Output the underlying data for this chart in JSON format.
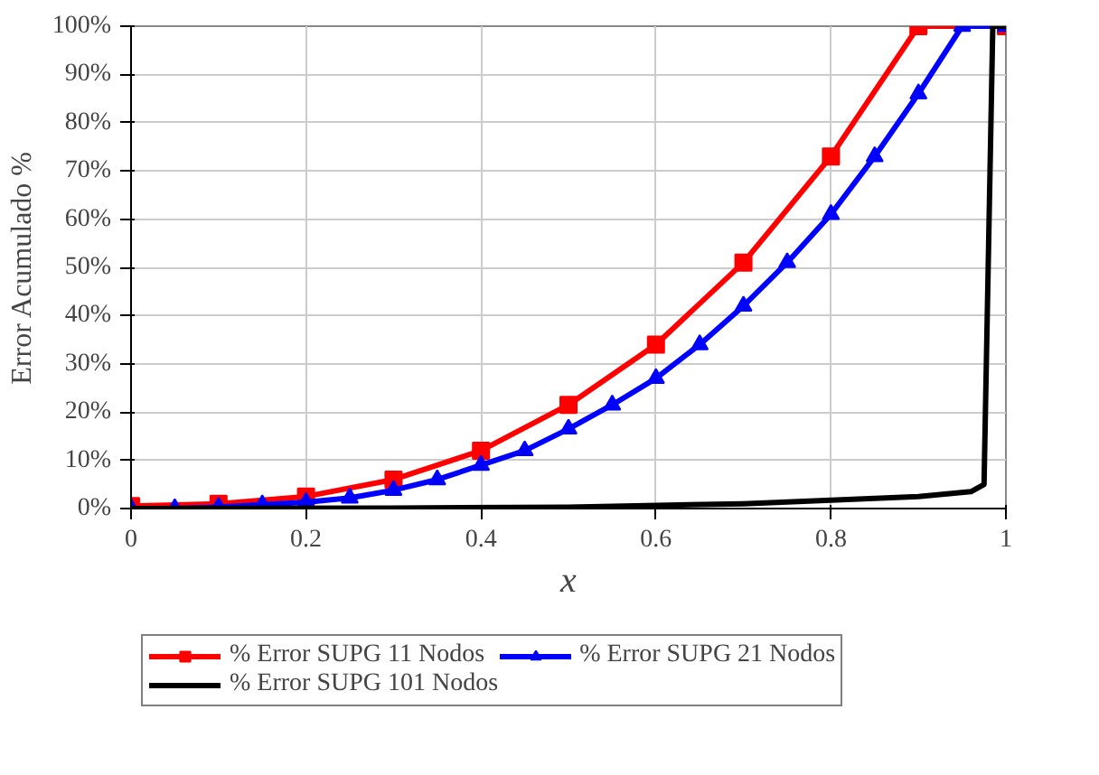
{
  "chart_data": {
    "type": "line",
    "xlabel": "x",
    "ylabel": "Error Acumulado %",
    "xlim": [
      0,
      1
    ],
    "xticks": [
      0,
      {
        "value": 0.2,
        "label": "0.2"
      },
      {
        "value": 0.4,
        "label": "0.4"
      },
      {
        "value": 0.6,
        "label": "0.6"
      },
      {
        "value": 0.8,
        "label": "0.8"
      },
      1
    ],
    "ylim": [
      0,
      100
    ],
    "yticks": [
      {
        "value": 0,
        "label": "0%"
      },
      {
        "value": 10,
        "label": "10%"
      },
      {
        "value": 20,
        "label": "20%"
      },
      {
        "value": 30,
        "label": "30%"
      },
      {
        "value": 40,
        "label": "40%"
      },
      {
        "value": 50,
        "label": "50%"
      },
      {
        "value": 60,
        "label": "60%"
      },
      {
        "value": 70,
        "label": "70%"
      },
      {
        "value": 80,
        "label": "80%"
      },
      {
        "value": 90,
        "label": "90%"
      },
      {
        "value": 100,
        "label": "100%"
      }
    ],
    "grid": true,
    "legend": "bottom",
    "line_style": "solid",
    "series": [
      {
        "name": "% Error SUPG 11 Nodos",
        "color": "#ff0000",
        "marker": "square",
        "x": [
          0,
          0.1,
          0.2,
          0.3,
          0.4,
          0.5,
          0.6,
          0.7,
          0.8,
          0.9,
          1
        ],
        "values": [
          0.5,
          1,
          2.5,
          6,
          12,
          21.5,
          34,
          51,
          73,
          100,
          100
        ]
      },
      {
        "name": "% Error SUPG 21 Nodos",
        "color": "#0000ff",
        "marker": "triangle",
        "x": [
          0,
          0.05,
          0.1,
          0.15,
          0.2,
          0.25,
          0.3,
          0.35,
          0.4,
          0.45,
          0.5,
          0.55,
          0.6,
          0.65,
          0.7,
          0.75,
          0.8,
          0.85,
          0.9,
          0.95,
          1
        ],
        "values": [
          0,
          0,
          0.3,
          0.8,
          1.3,
          2.2,
          3.8,
          6,
          9,
          12,
          16.5,
          21.5,
          27,
          34,
          42,
          51,
          61,
          73,
          86,
          100,
          100
        ]
      },
      {
        "name": "% Error SUPG 101 Nodos",
        "color": "#000000",
        "marker": "none",
        "x": [
          0,
          0.3,
          0.5,
          0.7,
          0.9,
          0.96,
          0.975,
          0.985,
          1
        ],
        "values": [
          0,
          0.1,
          0.3,
          1,
          2.5,
          3.5,
          5,
          100,
          100
        ]
      }
    ]
  }
}
